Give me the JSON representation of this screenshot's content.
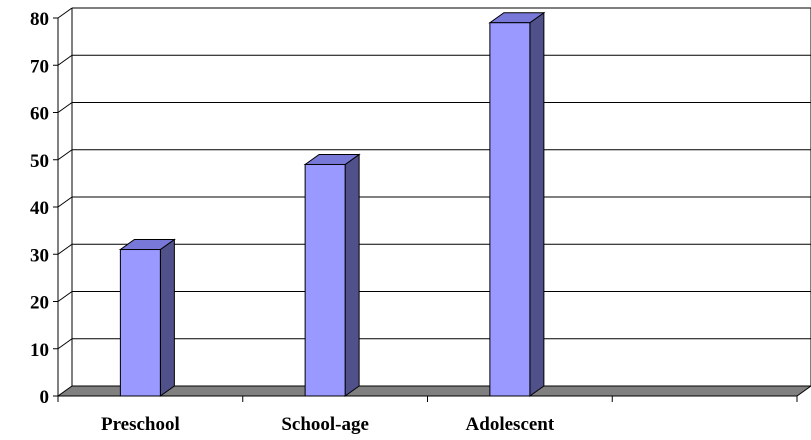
{
  "chart_data": {
    "type": "bar",
    "title": "",
    "xlabel": "",
    "ylabel": "",
    "categories": [
      "Preschool",
      "School-age",
      "Adolescent"
    ],
    "values": [
      31,
      49,
      79
    ],
    "ylim": [
      0,
      80
    ],
    "yticks": [
      0,
      10,
      20,
      30,
      40,
      50,
      60,
      70,
      80
    ],
    "grid": true,
    "legend": "none",
    "style": "3d-column",
    "colors": {
      "bar_front": "#9999ff",
      "bar_top": "#7878d8",
      "bar_side": "#50508a",
      "floor": "#808080",
      "grid": "#000000"
    }
  }
}
